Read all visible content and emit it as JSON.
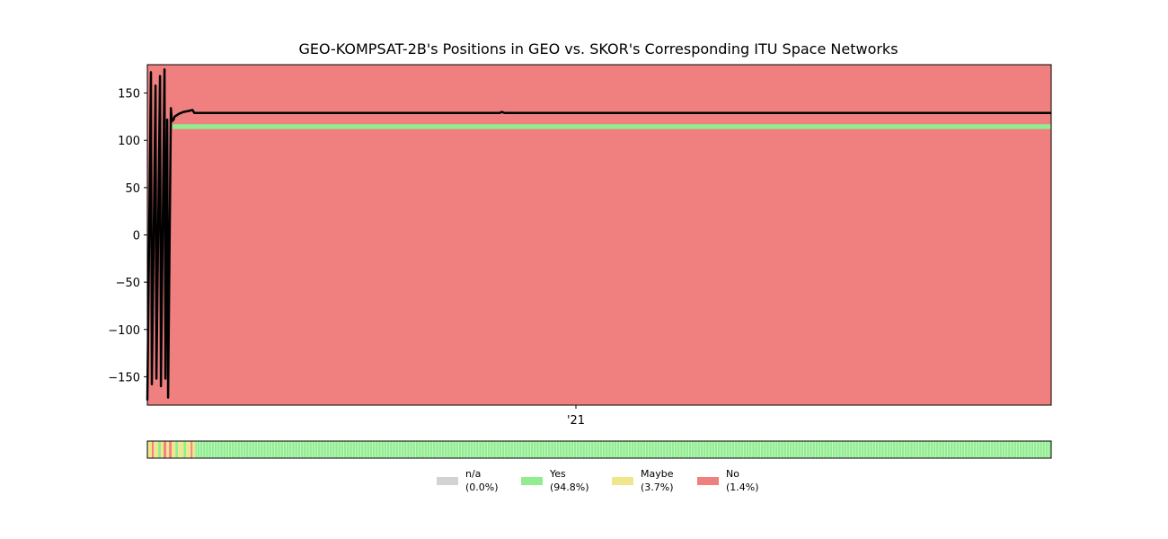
{
  "chart_data": {
    "type": "line",
    "title": "GEO-KOMPSAT-2B's Positions in GEO vs. SKOR's Corresponding ITU Space Networks",
    "xlabel": "",
    "ylabel": "",
    "ylim": [
      -180,
      180
    ],
    "y_ticks": [
      "150",
      "100",
      "50",
      "0",
      "−50",
      "−100",
      "−150"
    ],
    "y_tick_values": [
      150,
      100,
      50,
      0,
      -50,
      -100,
      -150
    ],
    "x_ticks": [
      "'21"
    ],
    "x_range_note": "time axis, ~early 2020 to ~late 2021",
    "background_color": "#f08080",
    "grid": false,
    "bands": [
      {
        "status": "Yes",
        "from": 112,
        "to": 117,
        "color": "#90ee90"
      }
    ],
    "series": [
      {
        "color": "#000000",
        "x": [
          0.0,
          0.004,
          0.005,
          0.009,
          0.01,
          0.014,
          0.015,
          0.019,
          0.02,
          0.022,
          0.023,
          0.026,
          0.027,
          0.029,
          0.03,
          0.035,
          0.04,
          0.045,
          0.05,
          0.052,
          0.06,
          0.1,
          0.2,
          0.3,
          0.39,
          0.392,
          0.395,
          0.5,
          0.6,
          0.7,
          0.8,
          0.9,
          1.0
        ],
        "y": [
          -175,
          172,
          -158,
          158,
          -152,
          168,
          -160,
          175,
          -152,
          122,
          -172,
          134,
          120,
          122,
          125,
          128,
          130,
          131,
          132,
          129,
          129,
          129,
          129,
          129,
          129,
          130,
          129,
          129,
          129,
          129,
          129,
          129,
          129
        ]
      }
    ],
    "status_strip": {
      "segments": [
        {
          "from": 0.0,
          "to": 0.005,
          "status": "Maybe"
        },
        {
          "from": 0.005,
          "to": 0.007,
          "status": "No"
        },
        {
          "from": 0.007,
          "to": 0.012,
          "status": "Maybe"
        },
        {
          "from": 0.012,
          "to": 0.015,
          "status": "Yes"
        },
        {
          "from": 0.015,
          "to": 0.018,
          "status": "Maybe"
        },
        {
          "from": 0.018,
          "to": 0.021,
          "status": "No"
        },
        {
          "from": 0.021,
          "to": 0.024,
          "status": "Maybe"
        },
        {
          "from": 0.024,
          "to": 0.027,
          "status": "No"
        },
        {
          "from": 0.027,
          "to": 0.031,
          "status": "Maybe"
        },
        {
          "from": 0.031,
          "to": 0.034,
          "status": "Yes"
        },
        {
          "from": 0.034,
          "to": 0.04,
          "status": "Maybe"
        },
        {
          "from": 0.04,
          "to": 0.043,
          "status": "Yes"
        },
        {
          "from": 0.043,
          "to": 0.048,
          "status": "Maybe"
        },
        {
          "from": 0.048,
          "to": 0.05,
          "status": "No"
        },
        {
          "from": 0.05,
          "to": 0.053,
          "status": "Maybe"
        },
        {
          "from": 0.053,
          "to": 1.0,
          "status": "Yes"
        }
      ]
    },
    "legend": {
      "placement": "bottom-center",
      "entries": [
        {
          "label": "n/a",
          "pct": "(0.0%)",
          "color": "#d3d3d3"
        },
        {
          "label": "Yes",
          "pct": "(94.8%)",
          "color": "#90ee90"
        },
        {
          "label": "Maybe",
          "pct": "(3.7%)",
          "color": "#f0e68c"
        },
        {
          "label": "No",
          "pct": "(1.4%)",
          "color": "#f08080"
        }
      ]
    }
  }
}
